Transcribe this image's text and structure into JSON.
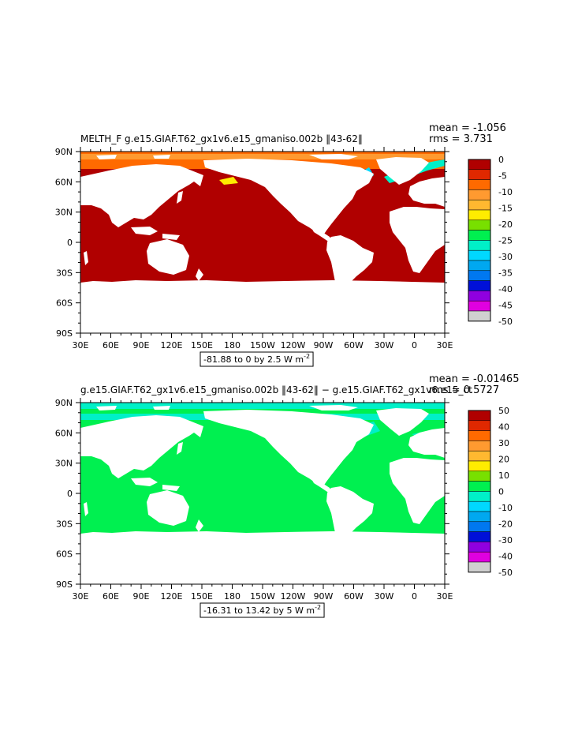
{
  "panels": [
    {
      "title": "MELTH_F g.e15.GIAF.T62_gx1v6.e15_gmaniso.002b ‖43-62‖",
      "stats": [
        "mean = -1.056",
        "rms = 3.731"
      ],
      "range_prefix": "-81.88 to 0 by 2.5  W m",
      "units_exp": "-2",
      "colorbar_labels": [
        "0",
        "-5",
        "-10",
        "-15",
        "-20",
        "-25",
        "-30",
        "-35",
        "-40",
        "-45",
        "-50"
      ]
    },
    {
      "title": "g.e15.GIAF.T62_gx1v6.e15_gmaniso.002b ‖43-62‖ − g.e15.GIAF.T62_gx1v6.e15_ct",
      "stats": [
        "mean = -0.01465",
        "rms = 0.5727"
      ],
      "range_prefix": "-16.31 to 13.42 by 5  W m",
      "units_exp": "-2",
      "colorbar_labels": [
        "50",
        "40",
        "30",
        "20",
        "10",
        "0",
        "-10",
        "-20",
        "-30",
        "-40",
        "-50"
      ]
    }
  ],
  "axes": {
    "lat_labels": [
      "90N",
      "60N",
      "30N",
      "0",
      "30S",
      "60S",
      "90S"
    ],
    "lon_labels": [
      "30E",
      "60E",
      "90E",
      "120E",
      "150E",
      "180",
      "150W",
      "120W",
      "90W",
      "60W",
      "30W",
      "0",
      "30E"
    ]
  },
  "colors": {
    "scale": [
      "#b00000",
      "#e02800",
      "#ff6a00",
      "#ff9a30",
      "#ffb830",
      "#ffec00",
      "#78e000",
      "#00f050",
      "#00f0c8",
      "#00d8ff",
      "#00a8f0",
      "#0078f0",
      "#0010d8",
      "#9000e0",
      "#e000e0",
      "#d0d0d0",
      "#707070"
    ],
    "land": "#ffffff",
    "panel1_ocean": "#b00000",
    "panel2_ocean": "#00f050"
  },
  "chart_data": [
    {
      "type": "heatmap",
      "title": "MELTH_F g.e15.GIAF.T62_gx1v6.e15_gmaniso.002b ‖43-62‖",
      "xlabel": "",
      "ylabel": "",
      "x_ticks": [
        "30E",
        "60E",
        "90E",
        "120E",
        "150E",
        "180",
        "150W",
        "120W",
        "90W",
        "60W",
        "30W",
        "0",
        "30E"
      ],
      "y_ticks": [
        "90N",
        "60N",
        "30N",
        "0",
        "30S",
        "60S",
        "90S"
      ],
      "lon_range": [
        30,
        390
      ],
      "lat_range": [
        -90,
        90
      ],
      "mean": -1.056,
      "rms": 3.731,
      "range": [
        -81.88,
        0
      ],
      "contour_interval": 2.5,
      "units": "W m-2",
      "colorbar": [
        0,
        -5,
        -10,
        -15,
        -20,
        -25,
        -30,
        -35,
        -40,
        -45,
        -50
      ]
    },
    {
      "type": "heatmap",
      "title": "g.e15.GIAF.T62_gx1v6.e15_gmaniso.002b ‖43-62‖ − g.e15.GIAF.T62_gx1v6.e15_ct",
      "xlabel": "",
      "ylabel": "",
      "x_ticks": [
        "30E",
        "60E",
        "90E",
        "120E",
        "150E",
        "180",
        "150W",
        "120W",
        "90W",
        "60W",
        "30W",
        "0",
        "30E"
      ],
      "y_ticks": [
        "90N",
        "60N",
        "30N",
        "0",
        "30S",
        "60S",
        "90S"
      ],
      "lon_range": [
        30,
        390
      ],
      "lat_range": [
        -90,
        90
      ],
      "mean": -0.01465,
      "rms": 0.5727,
      "range": [
        -16.31,
        13.42
      ],
      "contour_interval": 5,
      "units": "W m-2",
      "colorbar": [
        50,
        40,
        30,
        20,
        10,
        0,
        -10,
        -20,
        -30,
        -40,
        -50
      ]
    }
  ]
}
